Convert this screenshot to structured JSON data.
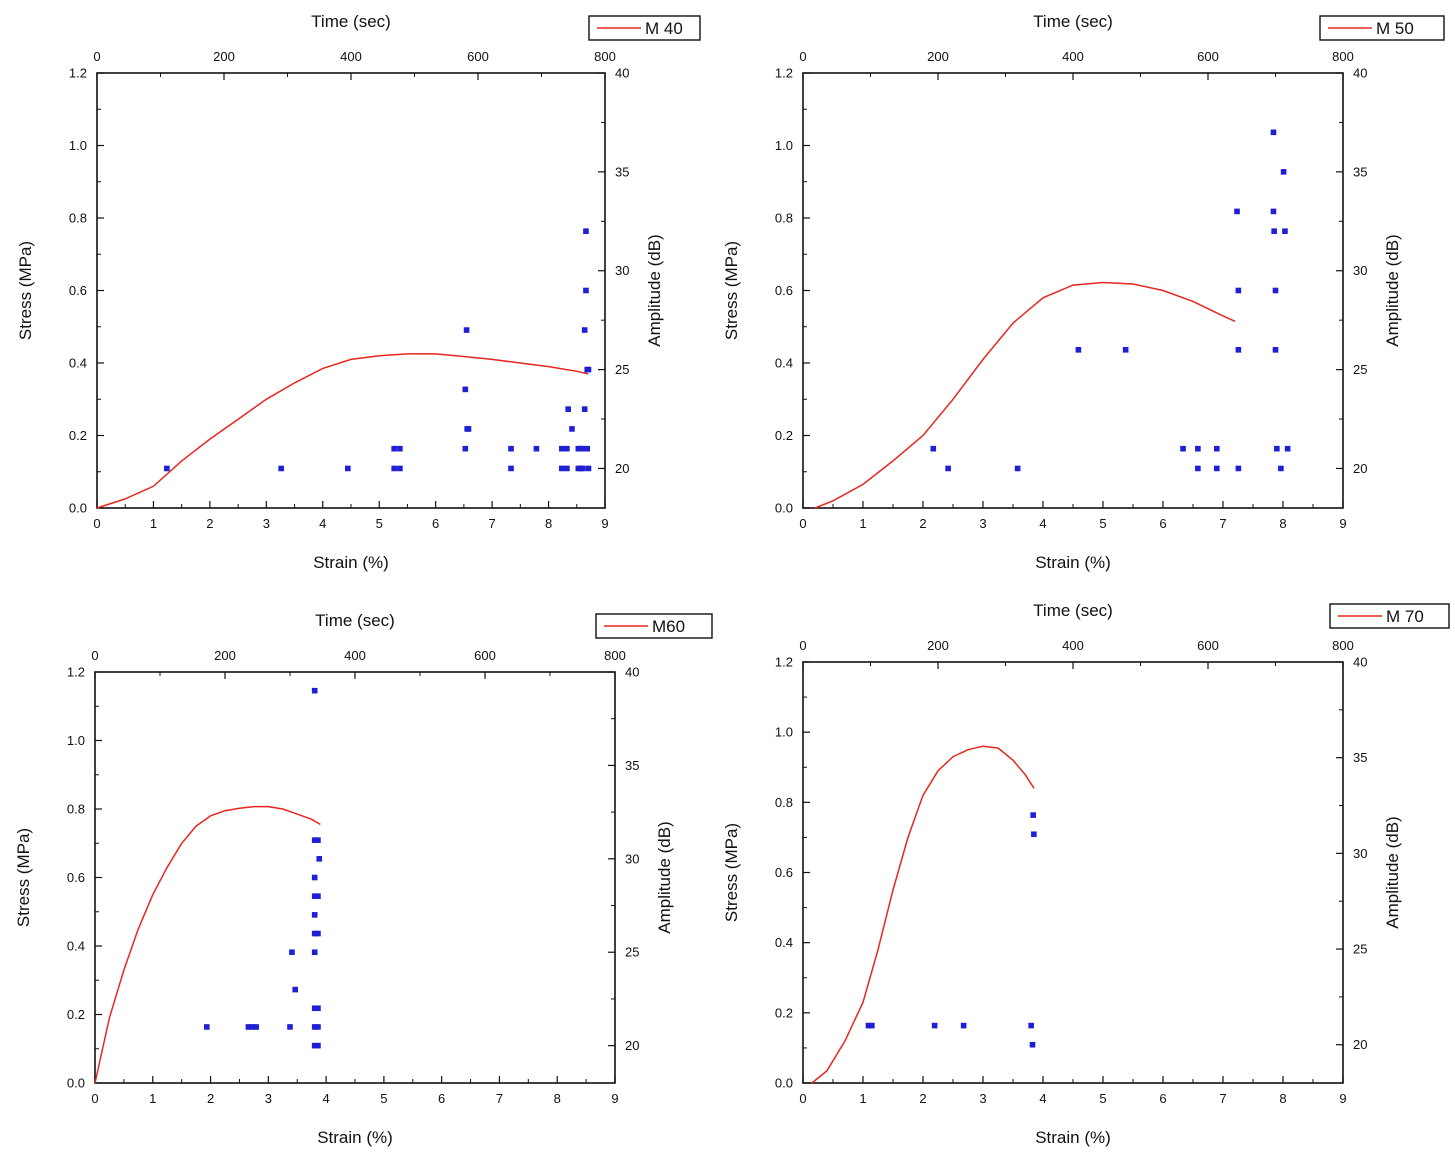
{
  "chart_data": [
    {
      "type": "scatter",
      "title": "",
      "legend": {
        "label": "M 40",
        "placement": "top-right"
      },
      "xlabel": "Strain (%)",
      "ylabel": "Stress (MPa)",
      "x2label": "Time (sec)",
      "y2label": "Amplitude (dB)",
      "xlim": [
        0,
        9
      ],
      "ylim": [
        0,
        1.2
      ],
      "x2lim": [
        0,
        800
      ],
      "y2lim": [
        18,
        40
      ],
      "x_ticks": [
        0,
        1,
        2,
        3,
        4,
        5,
        6,
        7,
        8,
        9
      ],
      "y_ticks": [
        "0.0",
        "0.2",
        "0.4",
        "0.6",
        "0.8",
        "1.0",
        "1.2"
      ],
      "x2_ticks": [
        0,
        200,
        400,
        600,
        800
      ],
      "y2_ticks": [
        20,
        25,
        30,
        35,
        40
      ],
      "colors": {
        "stress_line": "#e8261f",
        "amplitude_points": "#1f1fd6"
      },
      "series": [
        {
          "name": "Stress",
          "kind": "line",
          "axis": "left-bottom",
          "x": [
            0,
            0.5,
            1.0,
            1.5,
            2.0,
            2.5,
            3.0,
            3.5,
            4.0,
            4.5,
            5.0,
            5.5,
            6.0,
            6.5,
            7.0,
            7.5,
            8.0,
            8.5,
            8.7
          ],
          "y": [
            0,
            0.025,
            0.06,
            0.13,
            0.19,
            0.245,
            0.3,
            0.345,
            0.385,
            0.41,
            0.42,
            0.425,
            0.425,
            0.418,
            0.41,
            0.4,
            0.39,
            0.377,
            0.37
          ]
        },
        {
          "name": "Amplitude",
          "kind": "scatter",
          "axis": "right-top",
          "x": [
            110,
            290,
            395,
            468,
            468,
            477,
            477,
            580,
            580,
            582,
            583,
            585,
            652,
            652,
            692,
            732,
            732,
            740,
            740,
            742,
            748,
            758,
            758,
            762,
            762,
            765,
            765,
            768,
            768,
            770,
            770,
            772,
            772,
            774,
            774
          ],
          "y": [
            20,
            20,
            20,
            20,
            21,
            20,
            21,
            21,
            24,
            27,
            22,
            22,
            20,
            21,
            21,
            20,
            21,
            21,
            20,
            23,
            22,
            20,
            21,
            20,
            21,
            20,
            21,
            27,
            23,
            29,
            32,
            25,
            21,
            20,
            25
          ]
        }
      ]
    },
    {
      "type": "scatter",
      "title": "",
      "legend": {
        "label": "M 50",
        "placement": "top-right"
      },
      "xlabel": "Strain (%)",
      "ylabel": "Stress (MPa)",
      "x2label": "Time (sec)",
      "y2label": "Amplitude (dB)",
      "xlim": [
        0,
        9
      ],
      "ylim": [
        0,
        1.2
      ],
      "x2lim": [
        0,
        800
      ],
      "y2lim": [
        18,
        40
      ],
      "x_ticks": [
        0,
        1,
        2,
        3,
        4,
        5,
        6,
        7,
        8,
        9
      ],
      "y_ticks": [
        "0.0",
        "0.2",
        "0.4",
        "0.6",
        "0.8",
        "1.0",
        "1.2"
      ],
      "x2_ticks": [
        0,
        200,
        400,
        600,
        800
      ],
      "y2_ticks": [
        20,
        25,
        30,
        35,
        40
      ],
      "colors": {
        "stress_line": "#e8261f",
        "amplitude_points": "#1f1fd6"
      },
      "series": [
        {
          "name": "Stress",
          "kind": "line",
          "axis": "left-bottom",
          "x": [
            0.2,
            0.5,
            1.0,
            1.5,
            2.0,
            2.5,
            3.0,
            3.5,
            4.0,
            4.5,
            5.0,
            5.5,
            6.0,
            6.5,
            7.0,
            7.2
          ],
          "y": [
            0,
            0.02,
            0.065,
            0.13,
            0.2,
            0.3,
            0.41,
            0.51,
            0.58,
            0.615,
            0.622,
            0.618,
            0.6,
            0.57,
            0.53,
            0.515
          ]
        },
        {
          "name": "Amplitude",
          "kind": "scatter",
          "axis": "right-top",
          "x": [
            193,
            215,
            318,
            408,
            478,
            563,
            585,
            585,
            613,
            613,
            643,
            645,
            645,
            645,
            697,
            697,
            698,
            700,
            700,
            702,
            708,
            712,
            714,
            718
          ],
          "y": [
            21,
            20,
            20,
            26,
            26,
            21,
            21,
            20,
            21,
            20,
            33,
            29,
            26,
            20,
            37,
            33,
            32,
            29,
            26,
            21,
            20,
            35,
            32,
            21
          ]
        }
      ]
    },
    {
      "type": "scatter",
      "title": "",
      "legend": {
        "label": "M60",
        "placement": "top-right"
      },
      "xlabel": "Strain (%)",
      "ylabel": "Stress (MPa)",
      "x2label": "Time (sec)",
      "y2label": "Amplitude (dB)",
      "xlim": [
        0,
        9
      ],
      "ylim": [
        0,
        1.2
      ],
      "x2lim": [
        0,
        800
      ],
      "y2lim": [
        18,
        40
      ],
      "x_ticks": [
        0,
        1,
        2,
        3,
        4,
        5,
        6,
        7,
        8,
        9
      ],
      "y_ticks": [
        "0.0",
        "0.2",
        "0.4",
        "0.6",
        "0.8",
        "1.0",
        "1.2"
      ],
      "x2_ticks": [
        0,
        200,
        400,
        600,
        800
      ],
      "y2_ticks": [
        20,
        25,
        30,
        35,
        40
      ],
      "colors": {
        "stress_line": "#e8261f",
        "amplitude_points": "#1f1fd6"
      },
      "series": [
        {
          "name": "Stress",
          "kind": "line",
          "axis": "left-bottom",
          "x": [
            0,
            0.25,
            0.5,
            0.75,
            1.0,
            1.25,
            1.5,
            1.75,
            2.0,
            2.25,
            2.5,
            2.75,
            3.0,
            3.25,
            3.5,
            3.75,
            3.9
          ],
          "y": [
            0,
            0.19,
            0.33,
            0.45,
            0.55,
            0.63,
            0.7,
            0.75,
            0.78,
            0.795,
            0.802,
            0.807,
            0.807,
            0.8,
            0.785,
            0.77,
            0.755
          ]
        },
        {
          "name": "Amplitude",
          "kind": "scatter",
          "axis": "right-top",
          "x": [
            172,
            236,
            242,
            248,
            300,
            303,
            308,
            338,
            338,
            338,
            338,
            338,
            338,
            338,
            338,
            338,
            338,
            343,
            343,
            343,
            343,
            343,
            343,
            345
          ],
          "y": [
            21,
            21,
            21,
            21,
            21,
            25,
            23,
            39,
            31,
            29,
            28,
            27,
            26,
            25,
            22,
            21,
            20,
            31,
            28,
            26,
            22,
            21,
            20,
            30
          ]
        }
      ]
    },
    {
      "type": "scatter",
      "title": "",
      "legend": {
        "label": "M 70",
        "placement": "top-right"
      },
      "xlabel": "Strain (%)",
      "ylabel": "Stress (MPa)",
      "x2label": "Time (sec)",
      "y2label": "Amplitude (dB)",
      "xlim": [
        0,
        9
      ],
      "ylim": [
        0,
        1.2
      ],
      "x2lim": [
        0,
        800
      ],
      "y2lim": [
        18,
        40
      ],
      "x_ticks": [
        0,
        1,
        2,
        3,
        4,
        5,
        6,
        7,
        8,
        9
      ],
      "y_ticks": [
        "0.0",
        "0.2",
        "0.4",
        "0.6",
        "0.8",
        "1.0",
        "1.2"
      ],
      "x2_ticks": [
        0,
        200,
        400,
        600,
        800
      ],
      "y2_ticks": [
        20,
        25,
        30,
        35,
        40
      ],
      "colors": {
        "stress_line": "#e8261f",
        "amplitude_points": "#1f1fd6"
      },
      "series": [
        {
          "name": "Stress",
          "kind": "line",
          "axis": "left-bottom",
          "x": [
            0.15,
            0.4,
            0.7,
            1.0,
            1.25,
            1.5,
            1.75,
            2.0,
            2.25,
            2.5,
            2.75,
            3.0,
            3.25,
            3.5,
            3.7,
            3.85
          ],
          "y": [
            0,
            0.035,
            0.12,
            0.23,
            0.38,
            0.55,
            0.7,
            0.82,
            0.89,
            0.93,
            0.95,
            0.96,
            0.955,
            0.92,
            0.88,
            0.84
          ]
        },
        {
          "name": "Amplitude",
          "kind": "scatter",
          "axis": "right-top",
          "x": [
            97,
            102,
            195,
            238,
            338,
            340,
            341,
            342
          ],
          "y": [
            21,
            21,
            21,
            21,
            21,
            20,
            32,
            31
          ]
        }
      ]
    }
  ]
}
